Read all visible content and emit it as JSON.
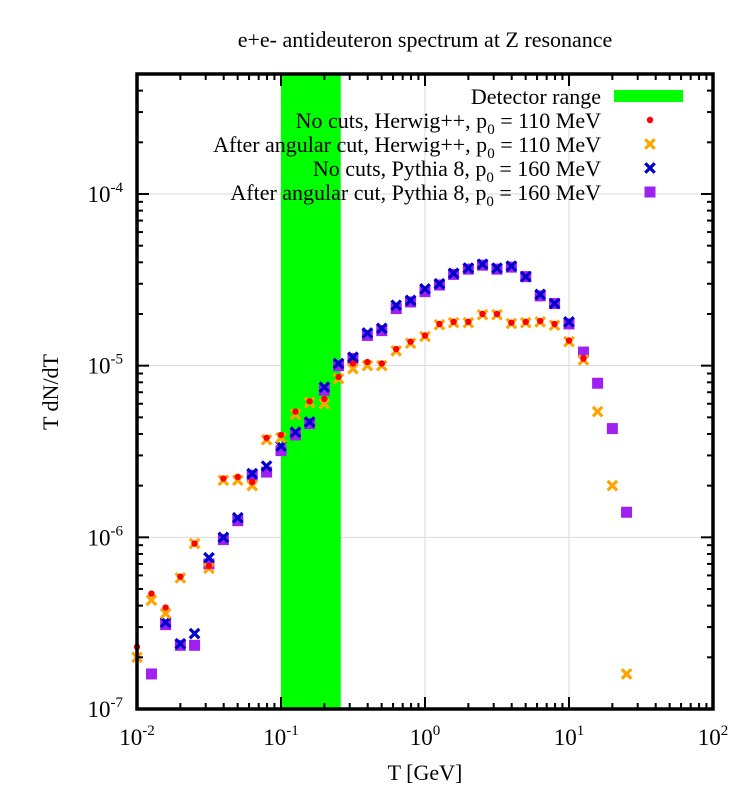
{
  "chart_data": {
    "type": "scatter",
    "title": "e+e- antideuteron spectrum at Z resonance",
    "xlabel": "T [GeV]",
    "ylabel": "T dN/dT",
    "xscale": "log",
    "yscale": "log",
    "xlim": [
      0.01,
      100
    ],
    "ylim": [
      1e-07,
      0.0005
    ],
    "grid": true,
    "legend_position": "top-right",
    "x_ticks": [
      {
        "base": "10",
        "exp": "-2",
        "value": 0.01
      },
      {
        "base": "10",
        "exp": "-1",
        "value": 0.1
      },
      {
        "base": "10",
        "exp": "0",
        "value": 1
      },
      {
        "base": "10",
        "exp": "1",
        "value": 10
      },
      {
        "base": "10",
        "exp": "2",
        "value": 100
      }
    ],
    "y_ticks": [
      {
        "base": "10",
        "exp": "-7",
        "value": 1e-07
      },
      {
        "base": "10",
        "exp": "-6",
        "value": 1e-06
      },
      {
        "base": "10",
        "exp": "-5",
        "value": 1e-05
      },
      {
        "base": "10",
        "exp": "-4",
        "value": 0.0001
      }
    ],
    "band": {
      "name": "Detector range",
      "xmin": 0.1,
      "xmax": 0.26,
      "color": "#00ff00"
    },
    "series": [
      {
        "legend_main": "No cuts, Herwig++, p",
        "legend_sub": "0",
        "legend_tail": " = 110 MeV",
        "marker": "circle",
        "color": "#ff0000",
        "x": [
          0.01,
          0.0126,
          0.0158,
          0.02,
          0.0251,
          0.0316,
          0.0398,
          0.0501,
          0.0631,
          0.0794,
          0.1,
          0.126,
          0.158,
          0.2,
          0.251,
          0.316,
          0.398,
          0.501,
          0.631,
          0.794,
          1.0,
          1.26,
          1.58,
          2.0,
          2.51,
          3.16,
          3.98,
          5.01,
          6.31,
          7.94,
          10.0,
          12.6
        ],
        "y": [
          2.3e-07,
          4.7e-07,
          3.9e-07,
          5.9e-07,
          9.2e-07,
          6.8e-07,
          2.2e-06,
          2.25e-06,
          2.1e-06,
          3.8e-06,
          3.95e-06,
          5.4e-06,
          6.2e-06,
          6.4e-06,
          8.6e-06,
          1.03e-05,
          1.05e-05,
          1.03e-05,
          1.25e-05,
          1.38e-05,
          1.5e-05,
          1.75e-05,
          1.8e-05,
          1.8e-05,
          2e-05,
          2e-05,
          1.78e-05,
          1.8e-05,
          1.82e-05,
          1.75e-05,
          1.4e-05,
          1.1e-05
        ]
      },
      {
        "legend_main": "After angular cut, Herwig++, p",
        "legend_sub": "0",
        "legend_tail": " = 110 MeV",
        "marker": "x",
        "color": "#ffa500",
        "x": [
          0.01,
          0.0126,
          0.0158,
          0.02,
          0.0251,
          0.0316,
          0.0398,
          0.0501,
          0.0631,
          0.0794,
          0.1,
          0.126,
          0.158,
          0.2,
          0.251,
          0.316,
          0.398,
          0.501,
          0.631,
          0.794,
          1.0,
          1.26,
          1.58,
          2.0,
          2.51,
          3.16,
          3.98,
          5.01,
          6.31,
          7.94,
          10.0,
          12.6,
          15.8,
          20.0,
          25.1
        ],
        "y": [
          2e-07,
          4.3e-07,
          3.6e-07,
          5.8e-07,
          9.2e-07,
          6.6e-07,
          2.15e-06,
          2.15e-06,
          2e-06,
          3.7e-06,
          3.8e-06,
          5.2e-06,
          6.1e-06,
          6e-06,
          8.4e-06,
          9.6e-06,
          1e-05,
          1e-05,
          1.22e-05,
          1.35e-05,
          1.48e-05,
          1.73e-05,
          1.78e-05,
          1.78e-05,
          1.98e-05,
          1.98e-05,
          1.76e-05,
          1.78e-05,
          1.8e-05,
          1.72e-05,
          1.38e-05,
          1.08e-05,
          5.4e-06,
          2e-06,
          1.6e-07
        ]
      },
      {
        "legend_main": "No cuts, Pythia 8, p",
        "legend_sub": "0",
        "legend_tail": " = 160 MeV",
        "marker": "x",
        "color": "#0000cc",
        "x": [
          0.0158,
          0.02,
          0.0251,
          0.0316,
          0.0398,
          0.0501,
          0.0631,
          0.0794,
          0.1,
          0.126,
          0.158,
          0.2,
          0.251,
          0.316,
          0.398,
          0.501,
          0.631,
          0.794,
          1.0,
          1.26,
          1.58,
          2.0,
          2.51,
          3.16,
          3.98,
          5.01,
          6.31,
          7.94,
          10.0
        ],
        "y": [
          3.2e-07,
          2.4e-07,
          2.75e-07,
          7.6e-07,
          1e-06,
          1.3e-06,
          2.35e-06,
          2.6e-06,
          3.4e-06,
          4.1e-06,
          4.7e-06,
          7.5e-06,
          1.03e-05,
          1.12e-05,
          1.55e-05,
          1.65e-05,
          2.25e-05,
          2.4e-05,
          2.8e-05,
          3e-05,
          3.45e-05,
          3.7e-05,
          3.9e-05,
          3.7e-05,
          3.8e-05,
          3.3e-05,
          2.6e-05,
          2.3e-05,
          1.8e-05
        ]
      },
      {
        "legend_main": "After angular cut, Pythia 8, p",
        "legend_sub": "0",
        "legend_tail": " = 160 MeV",
        "marker": "square",
        "color": "#a020f0",
        "x": [
          0.0126,
          0.0158,
          0.02,
          0.0251,
          0.0316,
          0.0398,
          0.0501,
          0.0631,
          0.0794,
          0.1,
          0.126,
          0.158,
          0.2,
          0.251,
          0.316,
          0.398,
          0.501,
          0.631,
          0.794,
          1.0,
          1.26,
          1.58,
          2.0,
          2.51,
          3.16,
          3.98,
          5.01,
          6.31,
          7.94,
          10.0,
          12.6,
          15.8,
          20.0,
          25.1
        ],
        "y": [
          1.6e-07,
          3.1e-07,
          2.35e-07,
          2.35e-07,
          7e-07,
          9.7e-07,
          1.25e-06,
          2.3e-06,
          2.4e-06,
          3.2e-06,
          3.95e-06,
          4.6e-06,
          7.2e-06,
          1e-05,
          1.1e-05,
          1.5e-05,
          1.6e-05,
          2.15e-05,
          2.35e-05,
          2.7e-05,
          2.95e-05,
          3.4e-05,
          3.65e-05,
          3.85e-05,
          3.65e-05,
          3.75e-05,
          3.3e-05,
          2.55e-05,
          2.3e-05,
          1.75e-05,
          1.2e-05,
          7.9e-06,
          4.3e-06,
          1.4e-06
        ]
      }
    ]
  }
}
